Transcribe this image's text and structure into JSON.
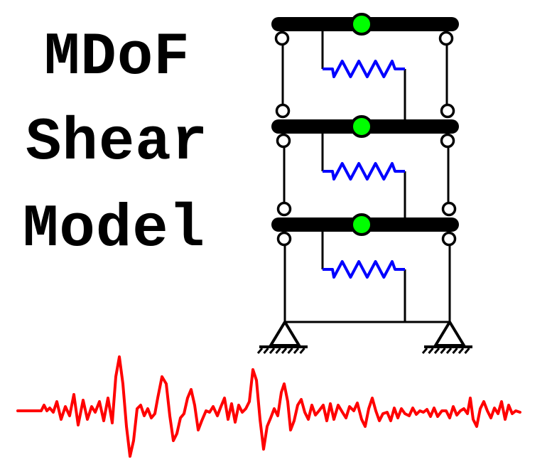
{
  "title": {
    "line1": "MDoF",
    "line2": "Shear",
    "line3": "Model"
  },
  "frame": {
    "stories": 3,
    "beam_color": "#000000",
    "column_color": "#000000",
    "mass_color": "#00ff00",
    "spring_color": "#0000ff",
    "hinge_fill": "#ffffff",
    "support_type": "pinned"
  },
  "ground_motion": {
    "color": "#ff0000"
  }
}
